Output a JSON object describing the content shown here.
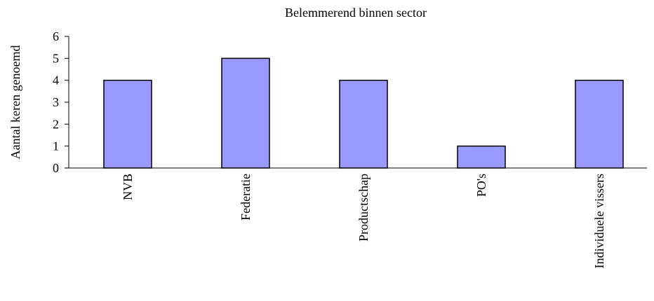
{
  "chart_data": {
    "type": "bar",
    "title": "Belemmerend binnen sector",
    "y_label": "Aantal keren genoemd",
    "categories": [
      "NVB",
      "Federatie",
      "Productschap",
      "PO's",
      "Individuele vissers"
    ],
    "values": [
      4,
      5,
      4,
      1,
      4
    ],
    "color": "#9999ff",
    "ylim": [
      0,
      6
    ],
    "yticks": [
      0,
      1,
      2,
      3,
      4,
      5,
      6
    ],
    "grid": false
  }
}
